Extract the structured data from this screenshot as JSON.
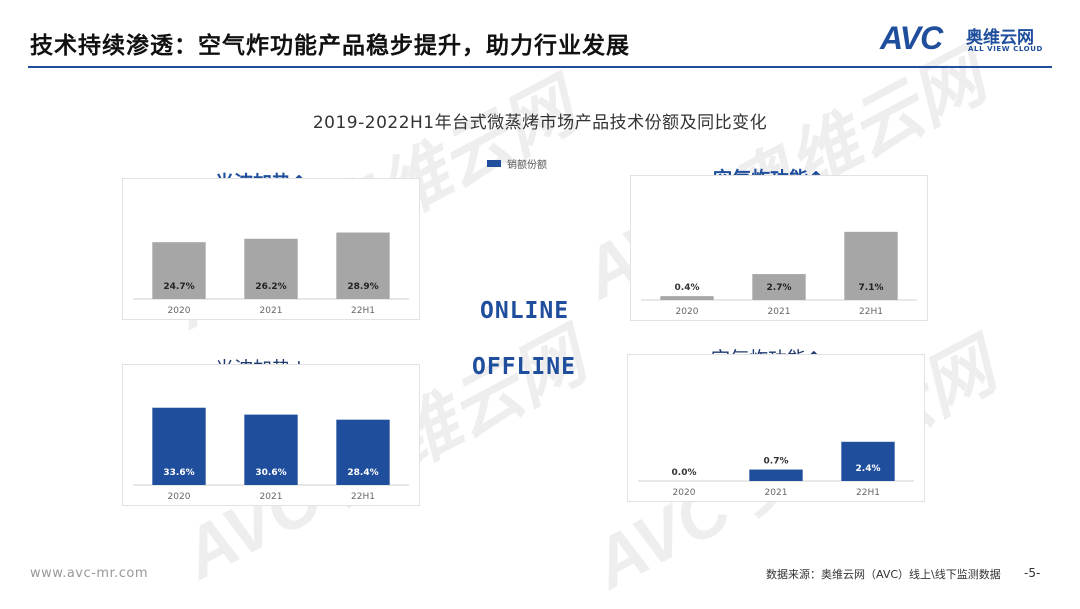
{
  "header": {
    "title": "技术持续渗透：空气炸功能产品稳步提升，助力行业发展",
    "logo_avc": "AVC",
    "logo_cn": "奥维云网",
    "logo_en": "ALL VIEW CLOUD"
  },
  "chart_title": "2019-2022H1年台式微蒸烤市场产品技术份额及同比变化",
  "legend_label": "销额份额",
  "channels": {
    "online": "ONLINE",
    "offline": "OFFLINE"
  },
  "colors": {
    "online_bar": "#a6a6a6",
    "offline_bar": "#1f4e9c",
    "accent": "#1f4e9c"
  },
  "chart_data": [
    {
      "type": "bar",
      "channel": "ONLINE",
      "title": "光波加热↑",
      "categories": [
        "2020",
        "2021",
        "22H1"
      ],
      "values": [
        24.7,
        26.2,
        28.9
      ],
      "labels": [
        "24.7%",
        "26.2%",
        "28.9%"
      ],
      "ylim": [
        0,
        40
      ]
    },
    {
      "type": "bar",
      "channel": "ONLINE",
      "title": "空气炸功能↑",
      "categories": [
        "2020",
        "2021",
        "22H1"
      ],
      "values": [
        0.4,
        2.7,
        7.1
      ],
      "labels": [
        "0.4%",
        "2.7%",
        "7.1%"
      ],
      "ylim": [
        0,
        10
      ]
    },
    {
      "type": "bar",
      "channel": "OFFLINE",
      "title": "光波加热↓",
      "categories": [
        "2020",
        "2021",
        "22H1"
      ],
      "values": [
        33.6,
        30.6,
        28.4
      ],
      "labels": [
        "33.6%",
        "30.6%",
        "28.4%"
      ],
      "ylim": [
        0,
        40
      ]
    },
    {
      "type": "bar",
      "channel": "OFFLINE",
      "title": "空气炸功能↑",
      "categories": [
        "2020",
        "2021",
        "22H1"
      ],
      "values": [
        0.0,
        0.7,
        2.4
      ],
      "labels": [
        "0.0%",
        "0.7%",
        "2.4%"
      ],
      "ylim": [
        0,
        6
      ]
    }
  ],
  "footer": {
    "url": "www.avc-mr.com",
    "source": "数据来源：奥维云网（AVC）线上\\线下监测数据",
    "page": "-5-"
  }
}
